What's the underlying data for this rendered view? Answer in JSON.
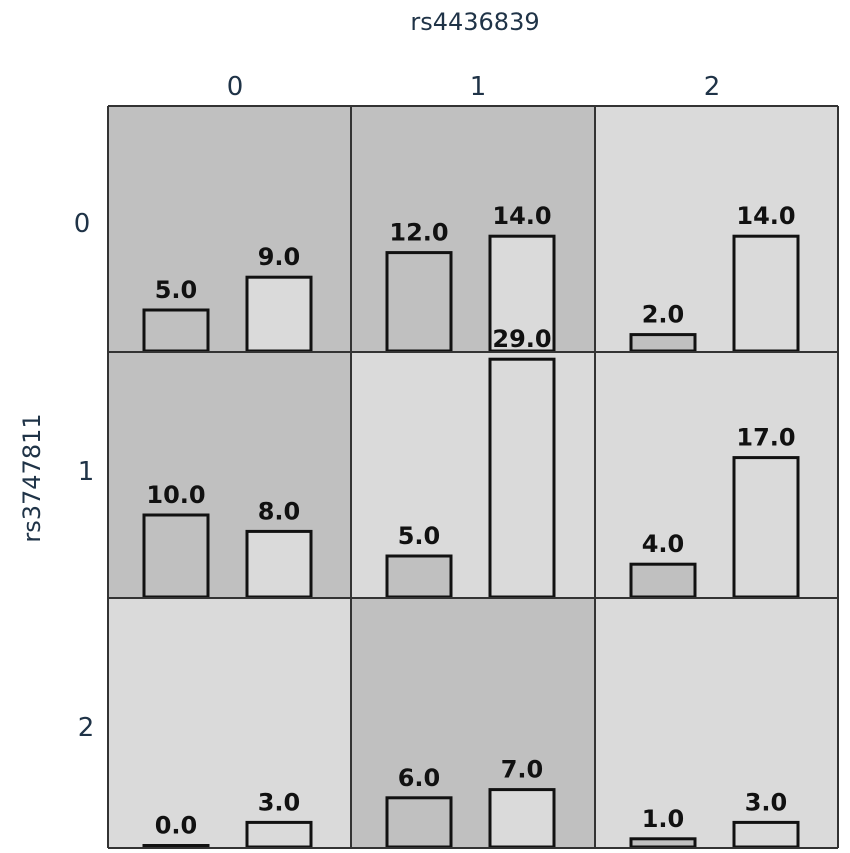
{
  "chart_data": {
    "type": "bar",
    "x_axis": {
      "label": "rs4436839",
      "ticks": [
        "0",
        "1",
        "2"
      ]
    },
    "y_axis": {
      "label": "rs3747811",
      "ticks": [
        "0",
        "1",
        "2"
      ]
    },
    "grid": true,
    "cells": [
      {
        "row": "0",
        "col": "0",
        "values": [
          5.0,
          9.0
        ],
        "labels": [
          "5.0",
          "9.0"
        ],
        "shade": "dark"
      },
      {
        "row": "0",
        "col": "1",
        "values": [
          12.0,
          14.0
        ],
        "labels": [
          "12.0",
          "14.0"
        ],
        "shade": "dark"
      },
      {
        "row": "0",
        "col": "2",
        "values": [
          2.0,
          14.0
        ],
        "labels": [
          "2.0",
          "14.0"
        ],
        "shade": "light"
      },
      {
        "row": "1",
        "col": "0",
        "values": [
          10.0,
          8.0
        ],
        "labels": [
          "10.0",
          "8.0"
        ],
        "shade": "dark"
      },
      {
        "row": "1",
        "col": "1",
        "values": [
          5.0,
          29.0
        ],
        "labels": [
          "5.0",
          "29.0"
        ],
        "shade": "light"
      },
      {
        "row": "1",
        "col": "2",
        "values": [
          4.0,
          17.0
        ],
        "labels": [
          "4.0",
          "17.0"
        ],
        "shade": "light"
      },
      {
        "row": "2",
        "col": "0",
        "values": [
          0.0,
          3.0
        ],
        "labels": [
          "0.0",
          "3.0"
        ],
        "shade": "light"
      },
      {
        "row": "2",
        "col": "1",
        "values": [
          6.0,
          7.0
        ],
        "labels": [
          "6.0",
          "7.0"
        ],
        "shade": "dark"
      },
      {
        "row": "2",
        "col": "2",
        "values": [
          1.0,
          3.0
        ],
        "labels": [
          "1.0",
          "3.0"
        ],
        "shade": "light"
      }
    ],
    "colors": {
      "cell_dark": "#c0c0c0",
      "cell_light": "#dadada",
      "bar_first": "#c0c0c0",
      "bar_second": "#dadada",
      "grid_line": "#333333"
    }
  }
}
